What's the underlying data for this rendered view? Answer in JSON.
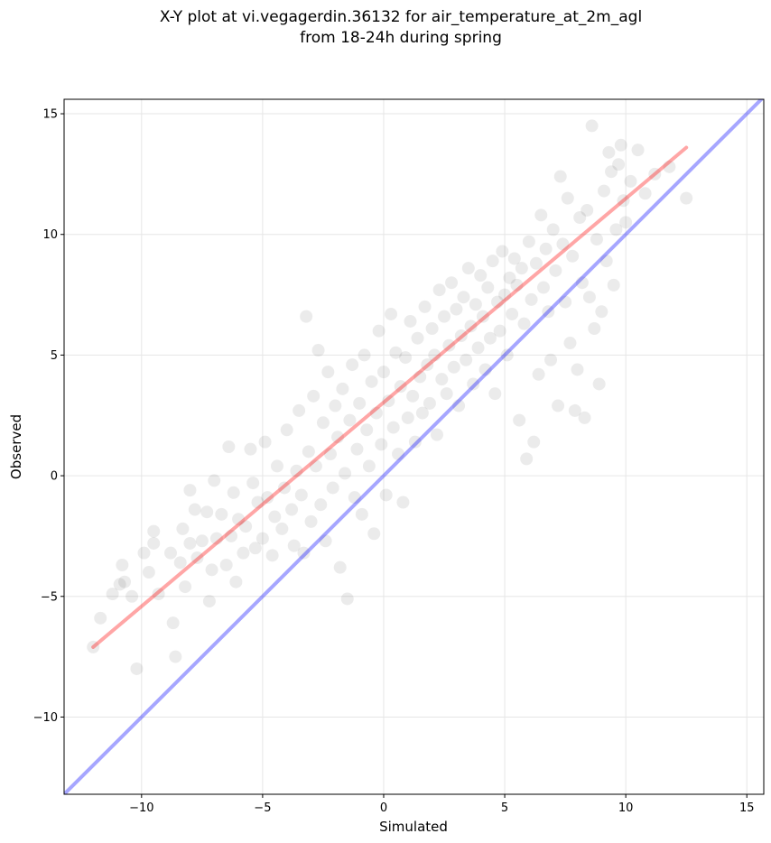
{
  "chart_data": {
    "type": "scatter",
    "title": "X-Y plot at vi.vegagerdin.36132 for air_temperature_at_2m_agl",
    "subtitle": "from 18-24h during spring",
    "xlabel": "Simulated",
    "ylabel": "Observed",
    "xlim": [
      -13.2,
      15.7
    ],
    "ylim": [
      -13.2,
      15.6
    ],
    "xticks": [
      -10,
      -5,
      0,
      5,
      10,
      15
    ],
    "yticks": [
      -10,
      -5,
      0,
      5,
      10,
      15
    ],
    "xtick_labels": [
      "−10",
      "−5",
      "0",
      "5",
      "10",
      "15"
    ],
    "ytick_labels": [
      "−10",
      "−5",
      "0",
      "5",
      "10",
      "15"
    ],
    "grid": true,
    "series": [
      {
        "kind": "points",
        "color": "#000000",
        "opacity": 0.08,
        "points": [
          [
            -12.0,
            -7.1
          ],
          [
            -11.7,
            -5.9
          ],
          [
            -11.2,
            -4.9
          ],
          [
            -10.9,
            -4.5
          ],
          [
            -10.8,
            -3.7
          ],
          [
            -10.7,
            -4.4
          ],
          [
            -10.4,
            -5.0
          ],
          [
            -10.2,
            -8.0
          ],
          [
            -9.9,
            -3.2
          ],
          [
            -9.7,
            -4.0
          ],
          [
            -9.5,
            -2.8
          ],
          [
            -9.5,
            -2.3
          ],
          [
            -9.3,
            -4.9
          ],
          [
            -8.8,
            -3.2
          ],
          [
            -8.7,
            -6.1
          ],
          [
            -8.6,
            -7.5
          ],
          [
            -8.4,
            -3.6
          ],
          [
            -8.3,
            -2.2
          ],
          [
            -8.2,
            -4.6
          ],
          [
            -8.0,
            -2.8
          ],
          [
            -8.0,
            -0.6
          ],
          [
            -7.8,
            -1.4
          ],
          [
            -7.7,
            -3.4
          ],
          [
            -7.5,
            -2.7
          ],
          [
            -7.3,
            -1.5
          ],
          [
            -7.2,
            -5.2
          ],
          [
            -7.1,
            -3.9
          ],
          [
            -7.0,
            -0.2
          ],
          [
            -6.9,
            -2.6
          ],
          [
            -6.7,
            -1.6
          ],
          [
            -6.5,
            -3.7
          ],
          [
            -6.4,
            1.2
          ],
          [
            -6.3,
            -2.5
          ],
          [
            -6.2,
            -0.7
          ],
          [
            -6.1,
            -4.4
          ],
          [
            -6.0,
            -1.8
          ],
          [
            -5.8,
            -3.2
          ],
          [
            -5.7,
            -2.1
          ],
          [
            -5.5,
            1.1
          ],
          [
            -5.4,
            -0.3
          ],
          [
            -5.3,
            -3.0
          ],
          [
            -5.2,
            -1.1
          ],
          [
            -5.0,
            -2.6
          ],
          [
            -4.9,
            1.4
          ],
          [
            -4.8,
            -0.9
          ],
          [
            -4.6,
            -3.3
          ],
          [
            -4.5,
            -1.7
          ],
          [
            -4.4,
            0.4
          ],
          [
            -4.2,
            -2.2
          ],
          [
            -4.1,
            -0.5
          ],
          [
            -4.0,
            1.9
          ],
          [
            -3.8,
            -1.4
          ],
          [
            -3.7,
            -2.9
          ],
          [
            -3.6,
            0.2
          ],
          [
            -3.5,
            2.7
          ],
          [
            -3.4,
            -0.8
          ],
          [
            -3.3,
            -3.2
          ],
          [
            -3.2,
            6.6
          ],
          [
            -3.1,
            1.0
          ],
          [
            -3.0,
            -1.9
          ],
          [
            -2.9,
            3.3
          ],
          [
            -2.8,
            0.4
          ],
          [
            -2.7,
            5.2
          ],
          [
            -2.6,
            -1.2
          ],
          [
            -2.5,
            2.2
          ],
          [
            -2.4,
            -2.7
          ],
          [
            -2.3,
            4.3
          ],
          [
            -2.2,
            0.9
          ],
          [
            -2.1,
            -0.5
          ],
          [
            -2.0,
            2.9
          ],
          [
            -1.9,
            1.6
          ],
          [
            -1.8,
            -3.8
          ],
          [
            -1.7,
            3.6
          ],
          [
            -1.6,
            0.1
          ],
          [
            -1.5,
            -5.1
          ],
          [
            -1.4,
            2.3
          ],
          [
            -1.3,
            4.6
          ],
          [
            -1.2,
            -0.9
          ],
          [
            -1.1,
            1.1
          ],
          [
            -1.0,
            3.0
          ],
          [
            -0.9,
            -1.6
          ],
          [
            -0.8,
            5.0
          ],
          [
            -0.7,
            1.9
          ],
          [
            -0.6,
            0.4
          ],
          [
            -0.5,
            3.9
          ],
          [
            -0.4,
            -2.4
          ],
          [
            -0.3,
            2.6
          ],
          [
            -0.2,
            6.0
          ],
          [
            -0.1,
            1.3
          ],
          [
            0.0,
            4.3
          ],
          [
            0.1,
            -0.8
          ],
          [
            0.2,
            3.1
          ],
          [
            0.3,
            6.7
          ],
          [
            0.4,
            2.0
          ],
          [
            0.5,
            5.1
          ],
          [
            0.6,
            0.9
          ],
          [
            0.7,
            3.7
          ],
          [
            0.8,
            -1.1
          ],
          [
            0.9,
            4.9
          ],
          [
            1.0,
            2.4
          ],
          [
            1.1,
            6.4
          ],
          [
            1.2,
            3.3
          ],
          [
            1.3,
            1.4
          ],
          [
            1.4,
            5.7
          ],
          [
            1.5,
            4.1
          ],
          [
            1.6,
            2.6
          ],
          [
            1.7,
            7.0
          ],
          [
            1.8,
            4.6
          ],
          [
            1.9,
            3.0
          ],
          [
            2.0,
            6.1
          ],
          [
            2.1,
            5.0
          ],
          [
            2.2,
            1.7
          ],
          [
            2.3,
            7.7
          ],
          [
            2.4,
            4.0
          ],
          [
            2.5,
            6.6
          ],
          [
            2.6,
            3.4
          ],
          [
            2.7,
            5.4
          ],
          [
            2.8,
            8.0
          ],
          [
            2.9,
            4.5
          ],
          [
            3.0,
            6.9
          ],
          [
            3.1,
            2.9
          ],
          [
            3.2,
            5.8
          ],
          [
            3.3,
            7.4
          ],
          [
            3.4,
            4.8
          ],
          [
            3.5,
            8.6
          ],
          [
            3.6,
            6.2
          ],
          [
            3.7,
            3.8
          ],
          [
            3.8,
            7.1
          ],
          [
            3.9,
            5.3
          ],
          [
            4.0,
            8.3
          ],
          [
            4.1,
            6.6
          ],
          [
            4.2,
            4.4
          ],
          [
            4.3,
            7.8
          ],
          [
            4.4,
            5.7
          ],
          [
            4.5,
            8.9
          ],
          [
            4.6,
            3.4
          ],
          [
            4.7,
            7.2
          ],
          [
            4.8,
            6.0
          ],
          [
            4.9,
            9.3
          ],
          [
            5.0,
            7.5
          ],
          [
            5.1,
            5.0
          ],
          [
            5.2,
            8.2
          ],
          [
            5.3,
            6.7
          ],
          [
            5.4,
            9.0
          ],
          [
            5.5,
            7.9
          ],
          [
            5.6,
            2.3
          ],
          [
            5.7,
            8.6
          ],
          [
            5.8,
            6.3
          ],
          [
            5.9,
            0.7
          ],
          [
            6.0,
            9.7
          ],
          [
            6.1,
            7.3
          ],
          [
            6.2,
            1.4
          ],
          [
            6.3,
            8.8
          ],
          [
            6.4,
            4.2
          ],
          [
            6.5,
            10.8
          ],
          [
            6.6,
            7.8
          ],
          [
            6.7,
            9.4
          ],
          [
            6.8,
            6.8
          ],
          [
            6.9,
            4.8
          ],
          [
            7.0,
            10.2
          ],
          [
            7.1,
            8.5
          ],
          [
            7.2,
            2.9
          ],
          [
            7.3,
            12.4
          ],
          [
            7.4,
            9.6
          ],
          [
            7.5,
            7.2
          ],
          [
            7.6,
            11.5
          ],
          [
            7.7,
            5.5
          ],
          [
            7.8,
            9.1
          ],
          [
            7.9,
            2.7
          ],
          [
            8.0,
            4.4
          ],
          [
            8.1,
            10.7
          ],
          [
            8.2,
            8.0
          ],
          [
            8.3,
            2.4
          ],
          [
            8.4,
            11.0
          ],
          [
            8.5,
            7.4
          ],
          [
            8.6,
            14.5
          ],
          [
            8.7,
            6.1
          ],
          [
            8.8,
            9.8
          ],
          [
            8.9,
            3.8
          ],
          [
            9.0,
            6.8
          ],
          [
            9.1,
            11.8
          ],
          [
            9.2,
            8.9
          ],
          [
            9.3,
            13.4
          ],
          [
            9.4,
            12.6
          ],
          [
            9.5,
            7.9
          ],
          [
            9.6,
            10.2
          ],
          [
            9.7,
            12.9
          ],
          [
            9.8,
            13.7
          ],
          [
            9.9,
            11.4
          ],
          [
            10.0,
            10.5
          ],
          [
            10.2,
            12.2
          ],
          [
            10.5,
            13.5
          ],
          [
            10.8,
            11.7
          ],
          [
            11.2,
            12.5
          ],
          [
            11.8,
            12.8
          ],
          [
            12.5,
            11.5
          ]
        ]
      },
      {
        "kind": "line",
        "color": "#ff0000",
        "opacity": 0.35,
        "x": [
          -12.0,
          12.5
        ],
        "y": [
          -7.1,
          13.6
        ]
      },
      {
        "kind": "line",
        "color": "#0000ff",
        "opacity": 0.35,
        "x": [
          -13.2,
          15.7
        ],
        "y": [
          -13.2,
          15.7
        ]
      }
    ]
  }
}
